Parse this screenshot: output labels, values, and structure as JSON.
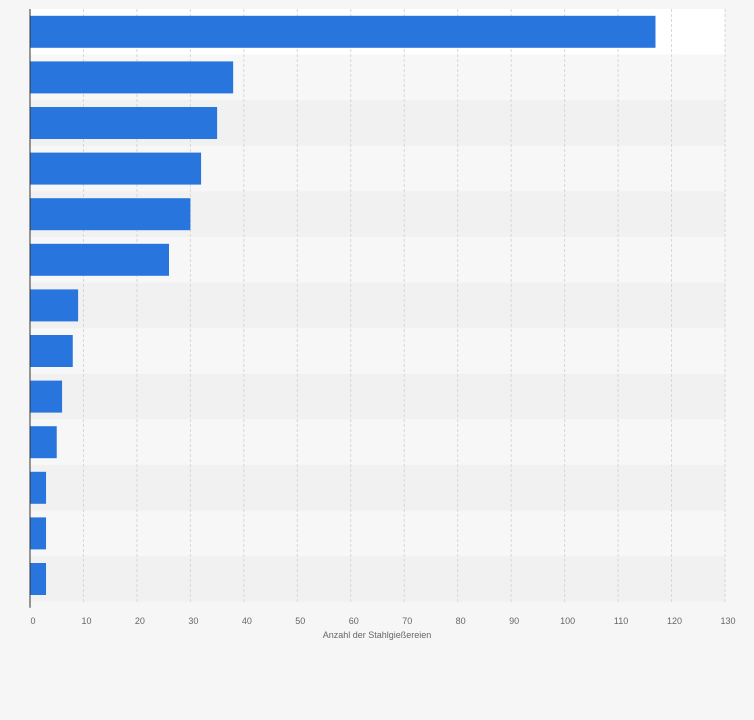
{
  "chart_data": {
    "type": "bar",
    "orientation": "horizontal",
    "categories": [
      "",
      "",
      "",
      "",
      "",
      "",
      "",
      "",
      "",
      "",
      "",
      "",
      ""
    ],
    "values": [
      117,
      38,
      35,
      32,
      30,
      26,
      9,
      8,
      6,
      5,
      3,
      3,
      3
    ],
    "xlabel": "Anzahl der Stahlgießereien",
    "ylabel": "",
    "xlim": [
      0,
      130
    ],
    "xticks": [
      "0",
      "10",
      "20",
      "30",
      "40",
      "50",
      "60",
      "70",
      "80",
      "90",
      "100",
      "110",
      "120",
      "130"
    ],
    "grid": true,
    "legend": "none",
    "bar_color": "#2876dd",
    "band_colors": [
      "#ffffff",
      "#f7f7f7",
      "#f1f1f1"
    ],
    "grid_color": "#d7d7d7",
    "axis_color": "#333333"
  }
}
